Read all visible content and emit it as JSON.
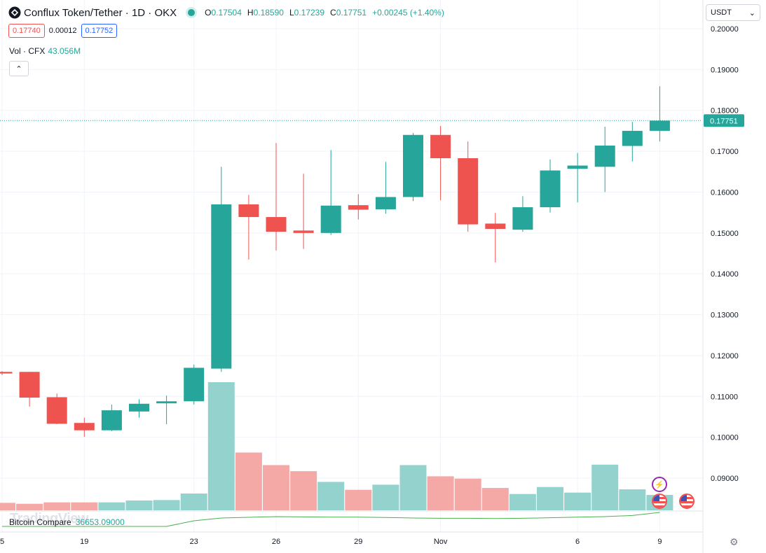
{
  "header": {
    "title": "Conflux Token/Tether · 1D · OKX",
    "open_label": "O",
    "open": "0.17504",
    "high_label": "H",
    "high": "0.18590",
    "low_label": "L",
    "low": "0.17239",
    "close_label": "C",
    "close": "0.17751",
    "change": "+0.00245 (+1.40%)",
    "sell_price": "0.17740",
    "spread": "0.00012",
    "buy_price": "0.17752"
  },
  "volume_legend": {
    "label": "Vol · CFX",
    "value": "43.056M"
  },
  "currency": {
    "selected": "USDT"
  },
  "collapse_icon": "chevron-up",
  "compare": {
    "label": "Bitcoin Compare",
    "value": "36653.09000"
  },
  "logo": "TradingView",
  "colors": {
    "up": "#26a69a",
    "down": "#ef5350",
    "vol_up": "#94d3cd",
    "vol_down": "#f5a9a7",
    "grid": "#f0f3fa"
  },
  "chart_data": {
    "type": "candlestick",
    "y_ticks": [
      "0.20000",
      "0.19000",
      "0.18000",
      "0.17000",
      "0.16000",
      "0.15000",
      "0.14000",
      "0.13000",
      "0.12000",
      "0.11000",
      "0.10000",
      "0.09000"
    ],
    "ylim": [
      0.0825,
      0.2033
    ],
    "x_ticks": [
      {
        "label": "5",
        "index": 0
      },
      {
        "label": "19",
        "index": 3
      },
      {
        "label": "23",
        "index": 7
      },
      {
        "label": "26",
        "index": 10
      },
      {
        "label": "29",
        "index": 13
      },
      {
        "label": "Nov",
        "index": 16
      },
      {
        "label": "6",
        "index": 21
      },
      {
        "label": "9",
        "index": 24
      }
    ],
    "last_price": "0.17751",
    "candles": [
      {
        "o": 0.116,
        "h": 0.1162,
        "l": 0.1152,
        "c": 0.1156,
        "v": 1.6
      },
      {
        "o": 0.116,
        "h": 0.116,
        "l": 0.1075,
        "c": 0.1097,
        "v": 1.4
      },
      {
        "o": 0.1098,
        "h": 0.1107,
        "l": 0.1032,
        "c": 0.1033,
        "v": 1.7
      },
      {
        "o": 0.1035,
        "h": 0.1048,
        "l": 0.1001,
        "c": 0.1017,
        "v": 1.7
      },
      {
        "o": 0.1017,
        "h": 0.108,
        "l": 0.1015,
        "c": 0.1066,
        "v": 1.7
      },
      {
        "o": 0.1063,
        "h": 0.1093,
        "l": 0.1048,
        "c": 0.1082,
        "v": 2.1
      },
      {
        "o": 0.1083,
        "h": 0.1102,
        "l": 0.1032,
        "c": 0.1088,
        "v": 2.2
      },
      {
        "o": 0.1088,
        "h": 0.1178,
        "l": 0.108,
        "c": 0.117,
        "v": 3.6
      },
      {
        "o": 0.1168,
        "h": 0.1662,
        "l": 0.116,
        "c": 0.157,
        "v": 27.5
      },
      {
        "o": 0.157,
        "h": 0.1593,
        "l": 0.1435,
        "c": 0.1539,
        "v": 12.4
      },
      {
        "o": 0.1539,
        "h": 0.172,
        "l": 0.1457,
        "c": 0.1503,
        "v": 9.7
      },
      {
        "o": 0.1506,
        "h": 0.1645,
        "l": 0.1461,
        "c": 0.15,
        "v": 8.4
      },
      {
        "o": 0.15,
        "h": 0.1703,
        "l": 0.1495,
        "c": 0.1567,
        "v": 6.1
      },
      {
        "o": 0.1568,
        "h": 0.1595,
        "l": 0.1533,
        "c": 0.1557,
        "v": 4.4
      },
      {
        "o": 0.1558,
        "h": 0.1674,
        "l": 0.1547,
        "c": 0.1588,
        "v": 5.5
      },
      {
        "o": 0.1588,
        "h": 0.1745,
        "l": 0.1578,
        "c": 0.174,
        "v": 9.7
      },
      {
        "o": 0.174,
        "h": 0.1762,
        "l": 0.158,
        "c": 0.1683,
        "v": 7.3
      },
      {
        "o": 0.1683,
        "h": 0.1724,
        "l": 0.1503,
        "c": 0.1521,
        "v": 6.8
      },
      {
        "o": 0.1523,
        "h": 0.1549,
        "l": 0.1428,
        "c": 0.151,
        "v": 4.8
      },
      {
        "o": 0.1508,
        "h": 0.159,
        "l": 0.1503,
        "c": 0.1563,
        "v": 3.5
      },
      {
        "o": 0.1563,
        "h": 0.168,
        "l": 0.155,
        "c": 0.1653,
        "v": 5.0
      },
      {
        "o": 0.1657,
        "h": 0.1696,
        "l": 0.1575,
        "c": 0.1665,
        "v": 3.8
      },
      {
        "o": 0.1662,
        "h": 0.176,
        "l": 0.16,
        "c": 0.1714,
        "v": 9.8
      },
      {
        "o": 0.1713,
        "h": 0.1772,
        "l": 0.1675,
        "c": 0.175,
        "v": 4.5
      },
      {
        "o": 0.175,
        "h": 0.1859,
        "l": 0.1724,
        "c": 0.1775,
        "v": 3.3
      }
    ],
    "compare_line": [
      0.0,
      0.0,
      0.0,
      0.0,
      0.0,
      0.0,
      0.0,
      0.4,
      0.6,
      0.65,
      0.7,
      0.68,
      0.66,
      0.66,
      0.64,
      0.6,
      0.58,
      0.58,
      0.56,
      0.58,
      0.62,
      0.66,
      0.7,
      0.78,
      1.0
    ]
  }
}
